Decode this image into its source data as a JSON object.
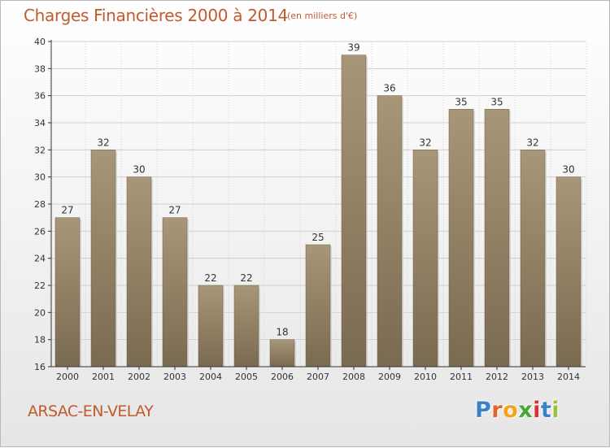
{
  "header": {
    "title": "Charges Financières 2000 à 2014",
    "unit": "(en milliers d'€)"
  },
  "footer": {
    "commune": "ARSAC-EN-VELAY",
    "logo_text": "Proxiti"
  },
  "colors": {
    "title": "#c25a2e",
    "bar_top": "#a89678",
    "bar_bottom": "#7a6a50",
    "axis": "#333333",
    "grid": "#cfcfcf"
  },
  "chart_data": {
    "type": "bar",
    "categories": [
      "2000",
      "2001",
      "2002",
      "2003",
      "2004",
      "2005",
      "2006",
      "2007",
      "2008",
      "2009",
      "2010",
      "2011",
      "2012",
      "2013",
      "2014"
    ],
    "values": [
      27,
      32,
      30,
      27,
      22,
      22,
      18,
      25,
      39,
      36,
      32,
      35,
      35,
      32,
      30
    ],
    "value_labels": [
      "27",
      "32",
      "30",
      "27",
      "22",
      "22",
      "18",
      "25",
      "39",
      "36",
      "32",
      "35",
      "35",
      "32",
      "30"
    ],
    "ylim": [
      16,
      40
    ],
    "yticks": [
      "16",
      "18",
      "20",
      "22",
      "24",
      "26",
      "28",
      "30",
      "32",
      "34",
      "36",
      "38",
      "40"
    ],
    "grid": true
  }
}
